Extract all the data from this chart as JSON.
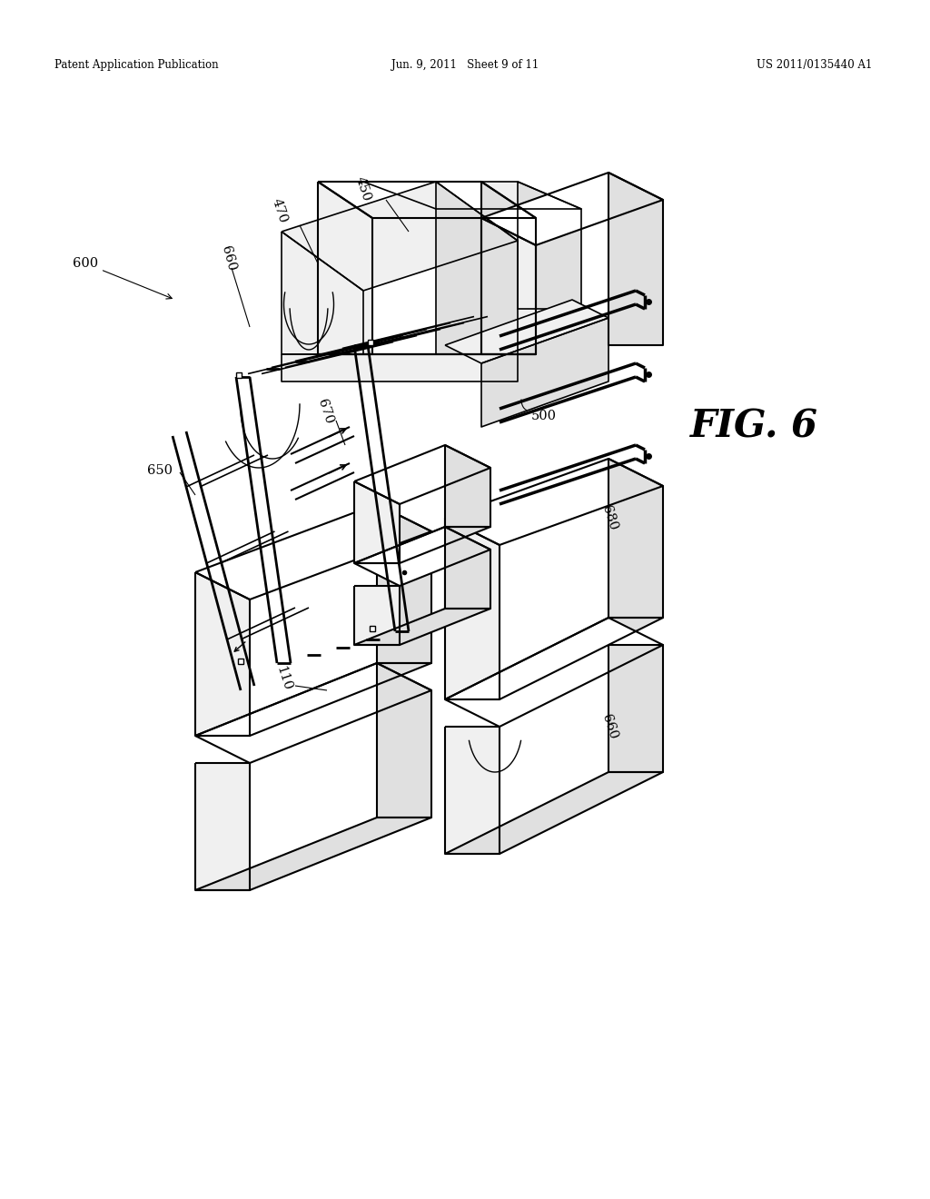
{
  "bg_color": "#ffffff",
  "header_left": "Patent Application Publication",
  "header_center": "Jun. 9, 2011   Sheet 9 of 11",
  "header_right": "US 2011/0135440 A1",
  "fig_label": "FIG. 6",
  "line_color": "#000000",
  "fill_light": "#f0f0f0",
  "fill_mid": "#e0e0e0",
  "fill_dark": "#cccccc"
}
